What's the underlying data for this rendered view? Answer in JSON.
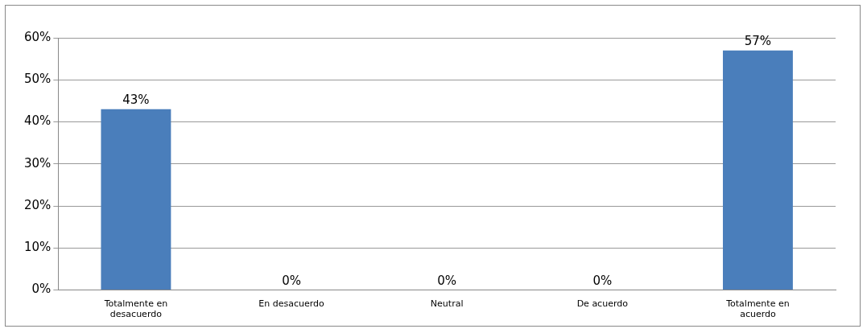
{
  "chart_data": {
    "type": "bar",
    "categories": [
      "Totalmente en desacuerdo",
      "En desacuerdo",
      "Neutral",
      "De acuerdo",
      "Totalmente en acuerdo"
    ],
    "values": [
      43,
      0,
      0,
      0,
      57
    ],
    "value_labels": [
      "43%",
      "0%",
      "0%",
      "0%",
      "57%"
    ],
    "color": "#4a7ebb",
    "ylim": [
      0,
      60
    ],
    "yticks": [
      {
        "value": 0,
        "label": "0%"
      },
      {
        "value": 10,
        "label": "10%"
      },
      {
        "value": 20,
        "label": "20%"
      },
      {
        "value": 30,
        "label": "30%"
      },
      {
        "value": 40,
        "label": "40%"
      },
      {
        "value": 50,
        "label": "50%"
      },
      {
        "value": 60,
        "label": "60%"
      }
    ],
    "grid": "y",
    "legend": false
  }
}
